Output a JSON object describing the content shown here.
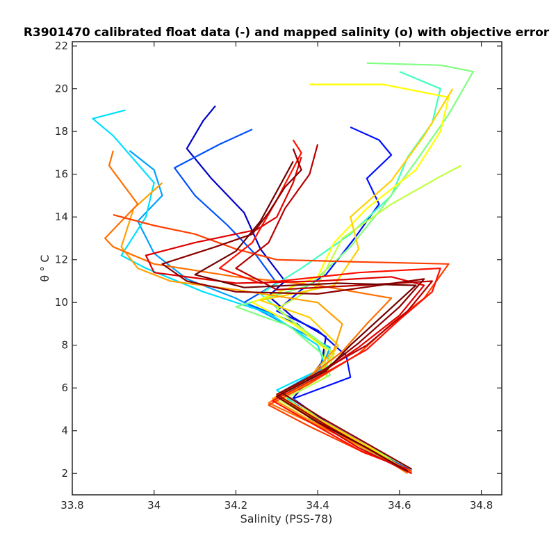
{
  "chart_data": {
    "type": "line",
    "title": "R3901470 calibrated float data (-) and mapped salinity (o) with objective error",
    "xlabel": "Salinity (PSS-78)",
    "ylabel": "θ ° C",
    "xlim": [
      33.8,
      34.85
    ],
    "ylim": [
      1.0,
      22.2
    ],
    "xticks": [
      33.8,
      34,
      34.2,
      34.4,
      34.6,
      34.8
    ],
    "xtick_labels": [
      "33.8",
      "34",
      "34.2",
      "34.4",
      "34.6",
      "34.8"
    ],
    "yticks": [
      2,
      4,
      6,
      8,
      10,
      12,
      14,
      16,
      18,
      20,
      22
    ],
    "ytick_labels": [
      "2",
      "4",
      "6",
      "8",
      "10",
      "12",
      "14",
      "16",
      "18",
      "20",
      "22"
    ],
    "grid": false,
    "colormap": "jet",
    "series": [
      {
        "color": "#0000c8",
        "values": [
          [
            34.63,
            2.1
          ],
          [
            34.55,
            3.0
          ],
          [
            34.43,
            4.2
          ],
          [
            34.33,
            5.3
          ],
          [
            34.37,
            6.2
          ],
          [
            34.41,
            7.2
          ],
          [
            34.42,
            8.4
          ],
          [
            34.34,
            9.3
          ],
          [
            34.28,
            10.3
          ],
          [
            34.32,
            11.0
          ],
          [
            34.26,
            12.5
          ],
          [
            34.22,
            14.2
          ],
          [
            34.14,
            15.8
          ],
          [
            34.08,
            17.2
          ],
          [
            34.12,
            18.5
          ],
          [
            34.15,
            19.2
          ]
        ]
      },
      {
        "color": "#0010ff",
        "values": [
          [
            34.62,
            2.1
          ],
          [
            34.52,
            3.3
          ],
          [
            34.42,
            4.4
          ],
          [
            34.34,
            5.5
          ],
          [
            34.48,
            6.5
          ],
          [
            34.47,
            7.5
          ],
          [
            34.4,
            8.7
          ],
          [
            34.3,
            9.6
          ],
          [
            34.36,
            10.6
          ],
          [
            34.42,
            11.3
          ],
          [
            34.49,
            13.0
          ],
          [
            34.55,
            14.6
          ],
          [
            34.52,
            15.8
          ],
          [
            34.58,
            16.9
          ],
          [
            34.55,
            17.6
          ],
          [
            34.48,
            18.2
          ]
        ]
      },
      {
        "color": "#0050ff",
        "values": [
          [
            34.63,
            2.2
          ],
          [
            34.52,
            3.2
          ],
          [
            34.4,
            4.5
          ],
          [
            34.32,
            5.6
          ],
          [
            34.4,
            6.7
          ],
          [
            34.42,
            7.8
          ],
          [
            34.35,
            9.0
          ],
          [
            34.22,
            10.0
          ],
          [
            34.3,
            10.9
          ],
          [
            34.25,
            12.2
          ],
          [
            34.18,
            13.6
          ],
          [
            34.1,
            15.0
          ],
          [
            34.05,
            16.3
          ],
          [
            34.16,
            17.4
          ],
          [
            34.24,
            18.1
          ]
        ]
      },
      {
        "color": "#00a0ff",
        "values": [
          [
            34.62,
            2.1
          ],
          [
            34.5,
            3.4
          ],
          [
            34.38,
            4.6
          ],
          [
            34.31,
            5.8
          ],
          [
            34.41,
            6.9
          ],
          [
            34.43,
            7.9
          ],
          [
            34.3,
            9.2
          ],
          [
            34.2,
            10.2
          ],
          [
            34.08,
            11.1
          ],
          [
            34.0,
            12.3
          ],
          [
            33.96,
            13.8
          ],
          [
            34.02,
            15.0
          ],
          [
            34.0,
            16.2
          ],
          [
            33.94,
            17.1
          ]
        ]
      },
      {
        "color": "#00e0ff",
        "values": [
          [
            34.63,
            2.0
          ],
          [
            34.48,
            3.5
          ],
          [
            34.38,
            4.7
          ],
          [
            34.3,
            5.9
          ],
          [
            34.42,
            7.0
          ],
          [
            34.4,
            8.0
          ],
          [
            34.28,
            9.5
          ],
          [
            34.12,
            10.5
          ],
          [
            33.98,
            11.6
          ],
          [
            33.92,
            12.2
          ],
          [
            33.98,
            14.0
          ],
          [
            34.0,
            15.6
          ],
          [
            33.9,
            17.8
          ],
          [
            33.85,
            18.6
          ],
          [
            33.93,
            19.0
          ]
        ]
      },
      {
        "color": "#40ffc0",
        "values": [
          [
            34.62,
            2.1
          ],
          [
            34.5,
            3.3
          ],
          [
            34.39,
            4.4
          ],
          [
            34.32,
            5.7
          ],
          [
            34.42,
            6.8
          ],
          [
            34.43,
            7.8
          ],
          [
            34.34,
            9.1
          ],
          [
            34.26,
            10.4
          ],
          [
            34.36,
            11.6
          ],
          [
            34.48,
            13.2
          ],
          [
            34.58,
            15.0
          ],
          [
            34.62,
            16.8
          ],
          [
            34.68,
            18.4
          ],
          [
            34.7,
            20.0
          ],
          [
            34.6,
            20.8
          ]
        ]
      },
      {
        "color": "#80ff80",
        "values": [
          [
            34.63,
            2.2
          ],
          [
            34.51,
            3.4
          ],
          [
            34.4,
            4.6
          ],
          [
            34.33,
            5.6
          ],
          [
            34.43,
            6.6
          ],
          [
            34.41,
            7.6
          ],
          [
            34.33,
            8.9
          ],
          [
            34.2,
            9.8
          ],
          [
            34.38,
            10.8
          ],
          [
            34.48,
            12.6
          ],
          [
            34.56,
            14.5
          ],
          [
            34.64,
            16.6
          ],
          [
            34.72,
            18.8
          ],
          [
            34.78,
            20.8
          ],
          [
            34.7,
            21.1
          ],
          [
            34.52,
            21.2
          ]
        ]
      },
      {
        "color": "#c0ff40",
        "values": [
          [
            34.62,
            2.1
          ],
          [
            34.53,
            3.2
          ],
          [
            34.41,
            4.3
          ],
          [
            34.31,
            5.4
          ],
          [
            34.42,
            6.5
          ],
          [
            34.44,
            7.6
          ],
          [
            34.36,
            8.8
          ],
          [
            34.3,
            9.7
          ],
          [
            34.4,
            10.8
          ],
          [
            34.46,
            13.0
          ],
          [
            34.58,
            14.6
          ],
          [
            34.7,
            15.9
          ],
          [
            34.75,
            16.4
          ]
        ]
      },
      {
        "color": "#ffff00",
        "values": [
          [
            34.63,
            2.0
          ],
          [
            34.52,
            3.3
          ],
          [
            34.4,
            4.5
          ],
          [
            34.31,
            5.5
          ],
          [
            34.41,
            6.6
          ],
          [
            34.42,
            7.8
          ],
          [
            34.34,
            9.0
          ],
          [
            34.24,
            10.0
          ],
          [
            34.4,
            11.2
          ],
          [
            34.44,
            12.8
          ],
          [
            34.52,
            14.4
          ],
          [
            34.64,
            16.2
          ],
          [
            34.7,
            18.0
          ],
          [
            34.72,
            19.6
          ],
          [
            34.56,
            20.2
          ],
          [
            34.38,
            20.2
          ]
        ]
      },
      {
        "color": "#ffd000",
        "values": [
          [
            34.62,
            2.1
          ],
          [
            34.51,
            3.4
          ],
          [
            34.4,
            4.6
          ],
          [
            34.3,
            5.7
          ],
          [
            34.41,
            6.8
          ],
          [
            34.45,
            8.0
          ],
          [
            34.38,
            9.3
          ],
          [
            34.26,
            10.1
          ],
          [
            34.44,
            10.8
          ],
          [
            34.5,
            12.5
          ],
          [
            34.48,
            14.0
          ],
          [
            34.58,
            15.7
          ],
          [
            34.66,
            17.8
          ],
          [
            34.73,
            20.0
          ]
        ]
      },
      {
        "color": "#ffa000",
        "values": [
          [
            34.63,
            2.1
          ],
          [
            34.5,
            3.3
          ],
          [
            34.38,
            4.5
          ],
          [
            34.29,
            5.5
          ],
          [
            34.38,
            6.5
          ],
          [
            34.44,
            7.8
          ],
          [
            34.46,
            9.0
          ],
          [
            34.4,
            10.0
          ],
          [
            34.2,
            10.6
          ],
          [
            34.04,
            11.0
          ],
          [
            33.96,
            11.6
          ],
          [
            33.92,
            12.6
          ],
          [
            33.95,
            14.4
          ],
          [
            34.02,
            15.6
          ]
        ]
      },
      {
        "color": "#ff7000",
        "values": [
          [
            34.62,
            2.0
          ],
          [
            34.52,
            3.2
          ],
          [
            34.38,
            4.4
          ],
          [
            34.28,
            5.3
          ],
          [
            34.37,
            6.4
          ],
          [
            34.46,
            7.7
          ],
          [
            34.52,
            9.0
          ],
          [
            34.58,
            10.2
          ],
          [
            34.4,
            10.8
          ],
          [
            34.2,
            11.2
          ],
          [
            34.0,
            11.8
          ],
          [
            33.9,
            12.6
          ],
          [
            33.88,
            13.0
          ],
          [
            33.96,
            14.6
          ],
          [
            33.89,
            16.4
          ],
          [
            33.9,
            17.1
          ]
        ]
      },
      {
        "color": "#ff4000",
        "values": [
          [
            34.63,
            2.1
          ],
          [
            34.5,
            3.1
          ],
          [
            34.38,
            4.2
          ],
          [
            34.28,
            5.2
          ],
          [
            34.38,
            6.2
          ],
          [
            34.5,
            7.6
          ],
          [
            34.58,
            9.0
          ],
          [
            34.66,
            10.2
          ],
          [
            34.72,
            11.8
          ],
          [
            34.5,
            11.9
          ],
          [
            34.3,
            12.0
          ],
          [
            34.2,
            12.5
          ],
          [
            34.1,
            13.2
          ],
          [
            34.0,
            13.6
          ],
          [
            33.9,
            14.1
          ]
        ]
      },
      {
        "color": "#ff1000",
        "values": [
          [
            34.62,
            2.2
          ],
          [
            34.51,
            3.0
          ],
          [
            34.39,
            4.3
          ],
          [
            34.29,
            5.4
          ],
          [
            34.39,
            6.4
          ],
          [
            34.52,
            7.8
          ],
          [
            34.6,
            9.2
          ],
          [
            34.68,
            10.5
          ],
          [
            34.7,
            11.6
          ],
          [
            34.5,
            11.4
          ],
          [
            34.26,
            10.9
          ],
          [
            34.16,
            11.6
          ],
          [
            34.24,
            12.8
          ],
          [
            34.3,
            14.8
          ],
          [
            34.36,
            17.0
          ],
          [
            34.34,
            17.6
          ]
        ]
      },
      {
        "color": "#e00000",
        "values": [
          [
            34.63,
            2.0
          ],
          [
            34.5,
            3.2
          ],
          [
            34.39,
            4.5
          ],
          [
            34.3,
            5.6
          ],
          [
            34.4,
            6.6
          ],
          [
            34.5,
            7.9
          ],
          [
            34.6,
            9.4
          ],
          [
            34.66,
            10.8
          ],
          [
            34.58,
            11.2
          ],
          [
            34.4,
            11.0
          ],
          [
            34.2,
            10.9
          ],
          [
            34.0,
            11.4
          ],
          [
            33.98,
            12.2
          ],
          [
            34.1,
            12.8
          ],
          [
            34.25,
            13.4
          ],
          [
            34.3,
            14.0
          ],
          [
            34.34,
            15.6
          ],
          [
            34.36,
            16.8
          ]
        ]
      },
      {
        "color": "#b80000",
        "values": [
          [
            34.62,
            2.1
          ],
          [
            34.51,
            3.3
          ],
          [
            34.4,
            4.5
          ],
          [
            34.3,
            5.7
          ],
          [
            34.41,
            6.8
          ],
          [
            34.52,
            8.0
          ],
          [
            34.62,
            9.6
          ],
          [
            34.68,
            11.0
          ],
          [
            34.5,
            10.8
          ],
          [
            34.3,
            10.6
          ],
          [
            34.2,
            11.6
          ],
          [
            34.28,
            12.8
          ],
          [
            34.32,
            14.4
          ],
          [
            34.38,
            16.0
          ],
          [
            34.4,
            17.4
          ]
        ]
      },
      {
        "color": "#8c0000",
        "values": [
          [
            34.63,
            2.2
          ],
          [
            34.52,
            3.4
          ],
          [
            34.41,
            4.6
          ],
          [
            34.31,
            5.8
          ],
          [
            34.42,
            6.9
          ],
          [
            34.5,
            8.1
          ],
          [
            34.6,
            9.8
          ],
          [
            34.66,
            11.1
          ],
          [
            34.4,
            10.4
          ],
          [
            34.2,
            10.5
          ],
          [
            34.08,
            11.0
          ],
          [
            34.02,
            11.8
          ],
          [
            34.15,
            12.6
          ],
          [
            34.24,
            13.2
          ],
          [
            34.28,
            14.2
          ],
          [
            34.32,
            15.4
          ],
          [
            34.36,
            16.2
          ],
          [
            34.34,
            17.2
          ]
        ]
      },
      {
        "color": "#700000",
        "values": [
          [
            34.62,
            2.1
          ],
          [
            34.52,
            3.2
          ],
          [
            34.4,
            4.4
          ],
          [
            34.3,
            5.6
          ],
          [
            34.42,
            6.8
          ],
          [
            34.48,
            8.0
          ],
          [
            34.56,
            9.4
          ],
          [
            34.64,
            10.8
          ],
          [
            34.45,
            10.9
          ],
          [
            34.22,
            10.7
          ],
          [
            34.1,
            11.3
          ],
          [
            34.2,
            12.4
          ],
          [
            34.26,
            13.8
          ],
          [
            34.3,
            15.2
          ],
          [
            34.34,
            16.6
          ]
        ]
      }
    ]
  }
}
